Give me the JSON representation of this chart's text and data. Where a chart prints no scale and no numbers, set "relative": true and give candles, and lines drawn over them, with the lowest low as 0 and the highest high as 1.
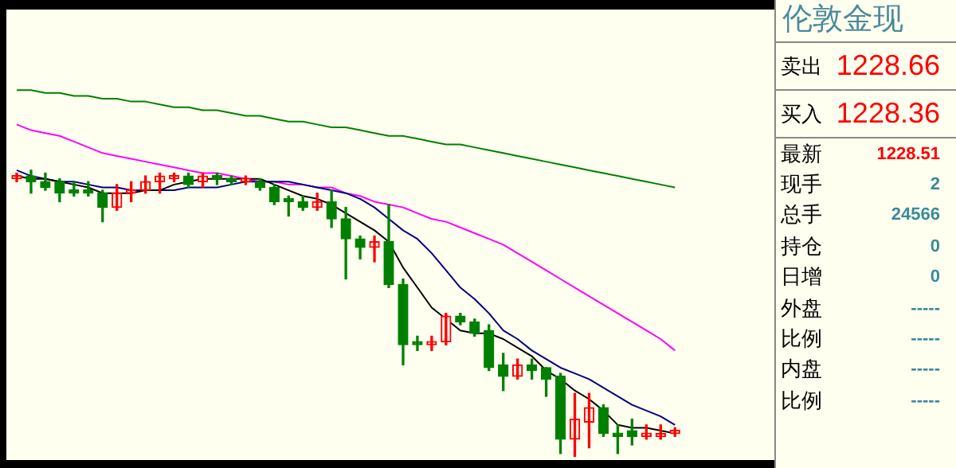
{
  "chart_data": [
    {
      "type": "candlestick",
      "relative": true,
      "legend": false,
      "marker": "none",
      "categories": [
        null,
        null,
        null,
        null,
        null,
        null,
        null,
        null,
        null,
        null,
        null,
        null,
        null,
        null,
        null,
        null,
        null,
        null,
        null,
        null,
        null,
        null,
        null,
        null,
        null,
        null,
        null,
        null,
        null,
        null,
        null,
        null,
        null,
        null,
        null,
        null,
        null,
        null,
        null,
        null,
        null,
        null,
        null,
        null,
        null,
        null,
        null,
        null,
        null,
        null,
        null,
        null,
        null
      ],
      "ohlc": [
        [
          0.97,
          0.99,
          0.96,
          0.98
        ],
        [
          0.98,
          1,
          0.92,
          0.96
        ],
        [
          0.96,
          0.99,
          0.93,
          0.94
        ],
        [
          0.96,
          0.97,
          0.89,
          0.92
        ],
        [
          0.93,
          0.96,
          0.91,
          0.92
        ],
        [
          0.93,
          0.96,
          0.91,
          0.92
        ],
        [
          0.92,
          0.93,
          0.82,
          0.87
        ],
        [
          0.87,
          0.95,
          0.86,
          0.92
        ],
        [
          0.92,
          0.96,
          0.89,
          0.93
        ],
        [
          0.93,
          0.98,
          0.92,
          0.96
        ],
        [
          0.96,
          0.99,
          0.92,
          0.98
        ],
        [
          0.97,
          0.99,
          0.96,
          0.98
        ],
        [
          0.98,
          0.99,
          0.94,
          0.95
        ],
        [
          0.96,
          0.99,
          0.94,
          0.98
        ],
        [
          0.98,
          0.99,
          0.95,
          0.97
        ],
        [
          0.97,
          0.98,
          0.95,
          0.96
        ],
        [
          0.96,
          0.98,
          0.95,
          0.97
        ],
        [
          0.96,
          0.97,
          0.93,
          0.94
        ],
        [
          0.94,
          0.95,
          0.88,
          0.89
        ],
        [
          0.9,
          0.91,
          0.84,
          0.89
        ],
        [
          0.89,
          0.91,
          0.86,
          0.87
        ],
        [
          0.87,
          0.92,
          0.86,
          0.89
        ],
        [
          0.89,
          0.93,
          0.8,
          0.83
        ],
        [
          0.83,
          0.87,
          0.62,
          0.76
        ],
        [
          0.76,
          0.77,
          0.69,
          0.73
        ],
        [
          0.73,
          0.77,
          0.68,
          0.75
        ],
        [
          0.75,
          0.88,
          0.59,
          0.6
        ],
        [
          0.6,
          0.62,
          0.32,
          0.39
        ],
        [
          0.4,
          0.42,
          0.37,
          0.39
        ],
        [
          0.39,
          0.42,
          0.37,
          0.4
        ],
        [
          0.4,
          0.5,
          0.39,
          0.49
        ],
        [
          0.49,
          0.5,
          0.46,
          0.47
        ],
        [
          0.47,
          0.48,
          0.42,
          0.43
        ],
        [
          0.44,
          0.46,
          0.3,
          0.31
        ],
        [
          0.32,
          0.36,
          0.23,
          0.28
        ],
        [
          0.28,
          0.34,
          0.27,
          0.32
        ],
        [
          0.32,
          0.34,
          0.27,
          0.3
        ],
        [
          0.31,
          0.31,
          0.21,
          0.27
        ],
        [
          0.28,
          0.29,
          0.01,
          0.06
        ],
        [
          0.06,
          0.22,
          0,
          0.13
        ],
        [
          0.12,
          0.22,
          0.03,
          0.17
        ],
        [
          0.17,
          0.18,
          0.07,
          0.08
        ],
        [
          0.08,
          0.11,
          0.01,
          0.07
        ],
        [
          0.09,
          0.13,
          0.04,
          0.07
        ],
        [
          0.07,
          0.11,
          0.06,
          0.08
        ],
        [
          0.08,
          0.11,
          0.06,
          0.08
        ],
        [
          0.08,
          0.1,
          0.07,
          0.09
        ],
        null,
        null,
        null,
        null,
        null,
        null
      ],
      "colors": [
        "#ff0000",
        "#008000",
        "#008000",
        "#008000",
        "#008000",
        "#008000",
        "#008000",
        "#ff0000",
        "#ff0000",
        "#ff0000",
        "#ff0000",
        "#ff0000",
        "#008000",
        "#ff0000",
        "#008000",
        "#008000",
        "#ff0000",
        "#008000",
        "#008000",
        "#008000",
        "#008000",
        "#ff0000",
        "#008000",
        "#008000",
        "#008000",
        "#ff0000",
        "#008000",
        "#008000",
        "#008000",
        "#ff0000",
        "#ff0000",
        "#008000",
        "#008000",
        "#008000",
        "#008000",
        "#ff0000",
        "#008000",
        "#008000",
        "#008000",
        "#ff0000",
        "#ff0000",
        "#008000",
        "#008000",
        "#008000",
        "#ff0000",
        "#ff0000",
        "#ff0000",
        null,
        null,
        null,
        null,
        null,
        null
      ],
      "series": [
        {
          "type": "line",
          "color": "#000000",
          "values": [
            0.98,
            0.97,
            0.97,
            0.96,
            0.95,
            0.94,
            0.92,
            0.92,
            0.92,
            0.93,
            0.93,
            0.95,
            0.96,
            0.97,
            0.97,
            0.97,
            0.97,
            0.97,
            0.95,
            0.93,
            0.91,
            0.9,
            0.88,
            0.85,
            0.82,
            0.79,
            0.75,
            0.66,
            0.59,
            0.52,
            0.48,
            0.44,
            0.43,
            0.43,
            0.41,
            0.38,
            0.35,
            0.3,
            0.27,
            0.23,
            0.2,
            0.16,
            0.11,
            0.1,
            0.1,
            0.09,
            0.08,
            null,
            null,
            null,
            null,
            null,
            null
          ]
        },
        {
          "type": "line",
          "color": "#000080",
          "values": [
            1,
            0.98,
            0.97,
            0.96,
            0.96,
            0.95,
            0.94,
            0.94,
            0.93,
            0.93,
            0.93,
            0.93,
            0.94,
            0.94,
            0.94,
            0.95,
            0.96,
            0.96,
            0.96,
            0.96,
            0.95,
            0.94,
            0.93,
            0.92,
            0.9,
            0.87,
            0.83,
            0.79,
            0.76,
            0.71,
            0.65,
            0.59,
            0.55,
            0.5,
            0.44,
            0.41,
            0.37,
            0.34,
            0.31,
            0.29,
            0.27,
            0.24,
            0.21,
            0.18,
            0.16,
            0.14,
            0.11,
            null,
            null,
            null,
            null,
            null,
            null
          ]
        },
        {
          "type": "line",
          "color": "#ff00ff",
          "values": [
            1.16,
            1.14,
            1.13,
            1.12,
            1.1,
            1.08,
            1.06,
            1.05,
            1.04,
            1.03,
            1.02,
            1.01,
            1,
            0.99,
            0.99,
            0.98,
            0.97,
            0.96,
            0.96,
            0.95,
            0.95,
            0.94,
            0.94,
            0.92,
            0.91,
            0.89,
            0.88,
            0.87,
            0.85,
            0.83,
            0.82,
            0.8,
            0.78,
            0.76,
            0.74,
            0.71,
            0.68,
            0.65,
            0.62,
            0.59,
            0.56,
            0.53,
            0.5,
            0.47,
            0.44,
            0.41,
            0.37,
            null,
            null,
            null,
            null,
            null,
            null
          ]
        },
        {
          "type": "line",
          "color": "#008000",
          "values": [
            1.28,
            1.28,
            1.27,
            1.27,
            1.26,
            1.26,
            1.25,
            1.25,
            1.24,
            1.24,
            1.23,
            1.22,
            1.22,
            1.21,
            1.21,
            1.2,
            1.19,
            1.19,
            1.18,
            1.17,
            1.17,
            1.16,
            1.15,
            1.15,
            1.14,
            1.13,
            1.12,
            1.12,
            1.11,
            1.1,
            1.09,
            1.09,
            1.08,
            1.07,
            1.06,
            1.05,
            1.04,
            1.03,
            1.02,
            1.01,
            1,
            0.99,
            0.98,
            0.97,
            0.96,
            0.95,
            0.94,
            null,
            null,
            null,
            null,
            null,
            null
          ]
        }
      ]
    },
    {
      "type": "other",
      "title": "伦敦金现",
      "annotations": [
        "卖出",
        "1228.66",
        "买入",
        "1228.36",
        "最新",
        "1228.51",
        "现手",
        "2",
        "总手",
        "24566",
        "持仓",
        "0",
        "日增",
        "0",
        "外盘",
        "-----",
        "比例",
        "-----",
        "内盘",
        "-----",
        "比例",
        "-----"
      ]
    }
  ]
}
